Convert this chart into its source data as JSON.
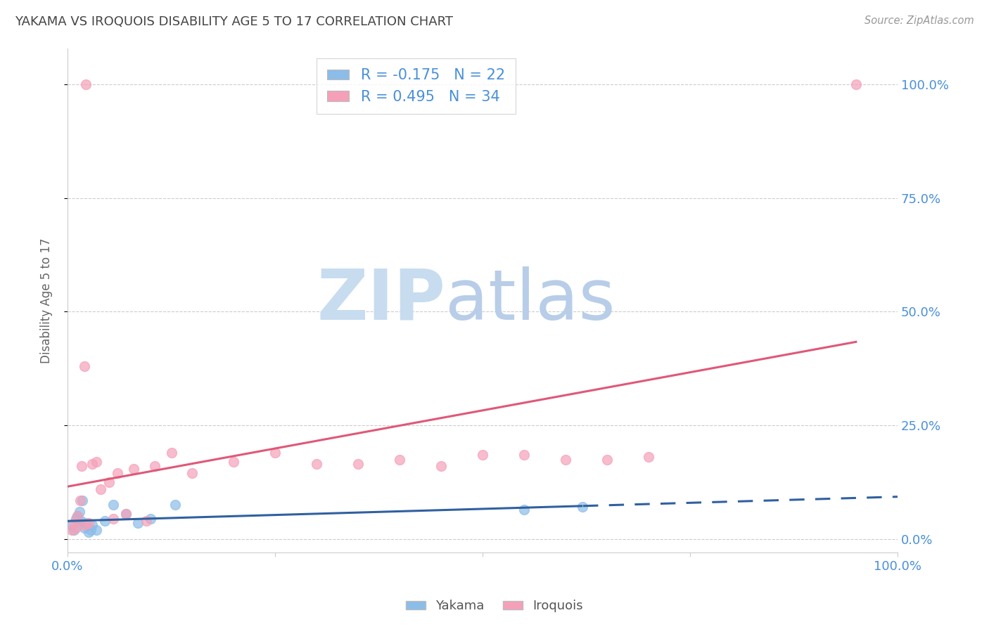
{
  "title": "YAKAMA VS IROQUOIS DISABILITY AGE 5 TO 17 CORRELATION CHART",
  "source": "Source: ZipAtlas.com",
  "ylabel": "Disability Age 5 to 17",
  "xmin": 0.0,
  "xmax": 100.0,
  "ymin": -3.0,
  "ymax": 108.0,
  "yakama_R": -0.175,
  "yakama_N": 22,
  "iroquois_R": 0.495,
  "iroquois_N": 34,
  "yakama_color": "#8BBDE8",
  "iroquois_color": "#F5A0B8",
  "yakama_line_color": "#3060A0",
  "iroquois_line_color": "#E05878",
  "background_color": "#FFFFFF",
  "grid_color": "#CCCCCC",
  "title_color": "#444444",
  "axis_label_color": "#4A90D9",
  "watermark_zip_color": "#C8DCF0",
  "watermark_atlas_color": "#B8CDE8",
  "yakama_x": [
    0.5,
    0.8,
    1.0,
    1.2,
    1.4,
    1.5,
    1.6,
    1.8,
    2.0,
    2.2,
    2.5,
    2.8,
    3.0,
    3.5,
    4.5,
    5.5,
    7.0,
    8.5,
    10.0,
    13.0,
    55.0,
    62.0
  ],
  "yakama_y": [
    3.0,
    2.0,
    4.5,
    5.0,
    6.0,
    3.5,
    4.0,
    8.5,
    2.5,
    3.5,
    1.5,
    2.0,
    3.0,
    2.0,
    4.0,
    7.5,
    5.5,
    3.5,
    4.5,
    7.5,
    6.5,
    7.0
  ],
  "iroquois_x": [
    0.5,
    0.8,
    1.0,
    1.2,
    1.5,
    1.7,
    2.0,
    2.0,
    2.5,
    3.0,
    3.5,
    4.0,
    5.0,
    5.5,
    6.0,
    7.0,
    8.0,
    9.5,
    10.5,
    12.5,
    15.0,
    20.0,
    25.0,
    30.0,
    35.0,
    40.0,
    45.0,
    50.0,
    55.0,
    60.0,
    65.0,
    70.0,
    2.2,
    95.0
  ],
  "iroquois_y": [
    2.0,
    3.5,
    2.5,
    5.0,
    8.5,
    16.0,
    3.0,
    38.0,
    3.5,
    16.5,
    17.0,
    11.0,
    12.5,
    4.5,
    14.5,
    5.5,
    15.5,
    4.0,
    16.0,
    19.0,
    14.5,
    17.0,
    19.0,
    16.5,
    16.5,
    17.5,
    16.0,
    18.5,
    18.5,
    17.5,
    17.5,
    18.0,
    100.0,
    100.0
  ],
  "marker_size": 100,
  "line_width": 2.2
}
